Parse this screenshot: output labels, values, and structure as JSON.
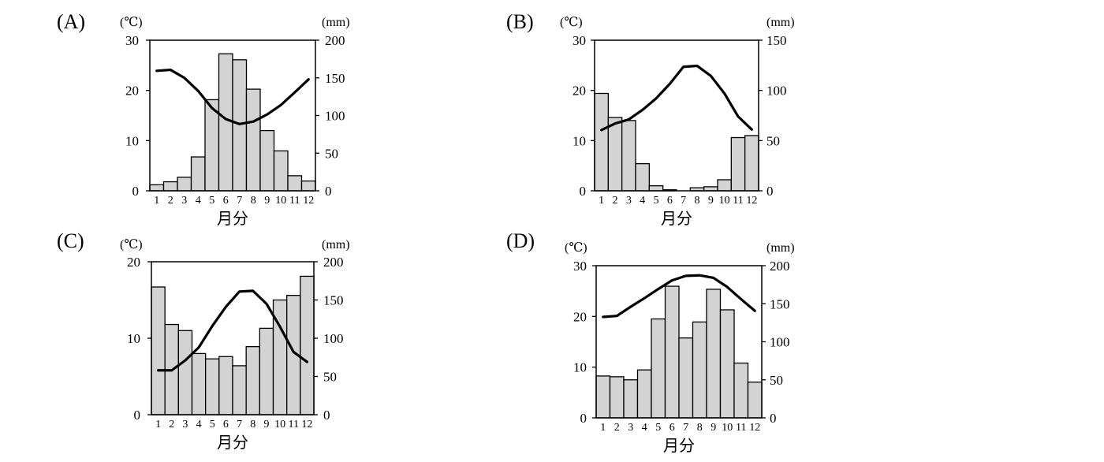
{
  "colors": {
    "bar_fill": "#d3d3d3",
    "stroke": "#000000",
    "line": "#000000"
  },
  "chart_data": [
    {
      "type": "bar+line",
      "panel_label": "(A)",
      "ylabel_left": "(℃)",
      "ylabel_right": "(mm)",
      "xlabel": "月分",
      "categories": [
        "1",
        "2",
        "3",
        "4",
        "5",
        "6",
        "7",
        "8",
        "9",
        "10",
        "11",
        "12"
      ],
      "ylim_left": [
        0,
        30
      ],
      "yticks_left": [
        0,
        10,
        20,
        30
      ],
      "ylim_right": [
        0,
        200
      ],
      "yticks_right": [
        0,
        50,
        100,
        150,
        200
      ],
      "precipitation": [
        8,
        12,
        18,
        45,
        121,
        182,
        174,
        135,
        80,
        53,
        20,
        13
      ],
      "temperature": [
        23.9,
        24.1,
        22.5,
        19.9,
        16.5,
        14.3,
        13.3,
        13.8,
        15.2,
        17.1,
        19.6,
        22.2
      ]
    },
    {
      "type": "bar+line",
      "panel_label": "(B)",
      "ylabel_left": "(℃)",
      "ylabel_right": "(mm)",
      "xlabel": "月分",
      "categories": [
        "1",
        "2",
        "3",
        "4",
        "5",
        "6",
        "7",
        "8",
        "9",
        "10",
        "11",
        "12"
      ],
      "ylim_left": [
        0,
        30
      ],
      "yticks_left": [
        0,
        10,
        20,
        30
      ],
      "ylim_right": [
        0,
        150
      ],
      "yticks_right": [
        0,
        50,
        100,
        150
      ],
      "precipitation": [
        97,
        73,
        70,
        27,
        5,
        1,
        0,
        3,
        4,
        11,
        53,
        55
      ],
      "temperature": [
        12.1,
        13.4,
        14.2,
        16.1,
        18.4,
        21.3,
        24.7,
        24.9,
        22.9,
        19.4,
        14.8,
        12.2
      ]
    },
    {
      "type": "bar+line",
      "panel_label": "(C)",
      "ylabel_left": "(℃)",
      "ylabel_right": "(mm)",
      "xlabel": "月分",
      "categories": [
        "1",
        "2",
        "3",
        "4",
        "5",
        "6",
        "7",
        "8",
        "9",
        "10",
        "11",
        "12"
      ],
      "ylim_left": [
        0,
        20
      ],
      "yticks_left": [
        0,
        10,
        20
      ],
      "ylim_right": [
        0,
        200
      ],
      "yticks_right": [
        0,
        50,
        100,
        150,
        200
      ],
      "precipitation": [
        167,
        118,
        110,
        80,
        73,
        76,
        64,
        89,
        113,
        150,
        156,
        181
      ],
      "temperature": [
        5.8,
        5.8,
        7.1,
        8.8,
        11.6,
        14.1,
        16.1,
        16.2,
        14.5,
        11.5,
        8.2,
        6.9
      ]
    },
    {
      "type": "bar+line",
      "panel_label": "(D)",
      "ylabel_left": "(℃)",
      "ylabel_right": "(mm)",
      "xlabel": "月分",
      "categories": [
        "1",
        "2",
        "3",
        "4",
        "5",
        "6",
        "7",
        "8",
        "9",
        "10",
        "11",
        "12"
      ],
      "ylim_left": [
        0,
        30
      ],
      "yticks_left": [
        0,
        10,
        20,
        30
      ],
      "ylim_right": [
        0,
        200
      ],
      "yticks_right": [
        0,
        50,
        100,
        150,
        200
      ],
      "precipitation": [
        55,
        54,
        50,
        63,
        130,
        173,
        105,
        126,
        169,
        142,
        72,
        47
      ],
      "temperature": [
        19.9,
        20.1,
        21.9,
        23.6,
        25.4,
        27.1,
        28.0,
        28.1,
        27.6,
        25.8,
        23.4,
        21.1
      ]
    }
  ]
}
